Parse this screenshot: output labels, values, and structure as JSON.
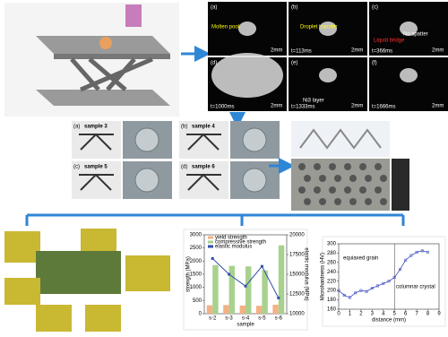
{
  "figure": {
    "process": {
      "panels": [
        "(a)",
        "(b)",
        "(c)",
        "(d)",
        "(e)",
        "(f)"
      ],
      "times": [
        "",
        "t=113ms",
        "t=366ms",
        "t=1000ms",
        "t=1333ms",
        "t=1666ms"
      ],
      "scale": "2mm",
      "notes": [
        "Molten pool",
        "Droplet transfer",
        "Liquid bridge",
        "No spatter",
        "Ni3 layer"
      ]
    },
    "samples": [
      {
        "tag": "(a)",
        "name": "sample 3"
      },
      {
        "tag": "(b)",
        "name": "sample 4"
      },
      {
        "tag": "(c)",
        "name": "sample 5"
      },
      {
        "tag": "(d)",
        "name": "sample 6"
      }
    ]
  },
  "chart_data": [
    {
      "type": "bar",
      "categories": [
        "s-2",
        "s-3",
        "s-4",
        "s-5",
        "s-6"
      ],
      "xlabel": "sample",
      "ylabel": "strength (MPa)",
      "y2label": "elastic modulus (MPa)",
      "ylim": [
        0,
        3000
      ],
      "yticks": [
        0,
        500,
        1000,
        1500,
        2000,
        2500,
        3000
      ],
      "y2lim": [
        10000,
        20000
      ],
      "y2ticks": [
        10000,
        12500,
        15000,
        17500,
        20000
      ],
      "series": [
        {
          "name": "yield strength",
          "color": "#f4b183",
          "values": [
            320,
            330,
            310,
            300,
            340
          ]
        },
        {
          "name": "compressive strength",
          "color": "#a9d18e",
          "values": [
            1850,
            1820,
            1800,
            1650,
            2600
          ]
        },
        {
          "name": "elastic modulus",
          "color": "#2f4fa8",
          "axis": "y2",
          "values": [
            17000,
            15000,
            13500,
            16000,
            12000
          ]
        }
      ]
    },
    {
      "type": "line",
      "xlabel": "distance (mm)",
      "ylabel": "Microhardness (HV)",
      "xlim": [
        0,
        9
      ],
      "xticks": [
        0,
        1,
        2,
        3,
        4,
        5,
        6,
        7,
        8,
        9
      ],
      "ylim": [
        160,
        300
      ],
      "yticks": [
        160,
        180,
        200,
        220,
        240,
        260,
        280,
        300
      ],
      "x": [
        0,
        0.5,
        1,
        1.5,
        2,
        2.5,
        3,
        3.5,
        4,
        4.5,
        5,
        5.5,
        6,
        6.5,
        7,
        7.5,
        8
      ],
      "series": [
        {
          "name": "microhardness",
          "color": "#3b4cc0",
          "values": [
            200,
            190,
            185,
            195,
            200,
            198,
            205,
            210,
            215,
            220,
            228,
            245,
            265,
            275,
            282,
            285,
            282
          ]
        }
      ],
      "annotations": [
        "equiaxed grain",
        "columnar crystal"
      ]
    }
  ]
}
